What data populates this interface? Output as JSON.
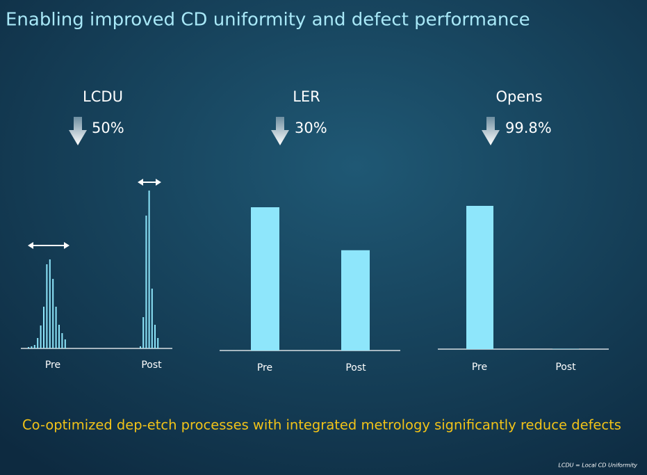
{
  "slide": {
    "title": "Enabling improved CD uniformity and defect performance",
    "caption": "Co-optimized dep-etch processes with integrated metrology significantly reduce defects",
    "footnote": "LCDU = Local CD Uniformity"
  },
  "chart_data": [
    {
      "type": "histogram",
      "title": "LCDU",
      "annotation": "50%",
      "categories": [
        "Pre",
        "Post"
      ],
      "values": [
        [
          2,
          3,
          5,
          15,
          33,
          60,
          121,
          128,
          100,
          60,
          34,
          22,
          13
        ],
        [
          3,
          45,
          191,
          227,
          86,
          34,
          15
        ]
      ],
      "color": "#8ee6fb",
      "ylim": [
        0,
        230
      ]
    },
    {
      "type": "bar",
      "title": "LER",
      "annotation": "30%",
      "categories": [
        "Pre",
        "Post"
      ],
      "values": [
        100,
        70
      ],
      "color": "#8ee6fb",
      "ylim": [
        0,
        100
      ]
    },
    {
      "type": "bar",
      "title": "Opens",
      "annotation": "99.8%",
      "categories": [
        "Pre",
        "Post"
      ],
      "values": [
        100,
        0.2
      ],
      "color": "#8ee6fb",
      "ylim": [
        0,
        100
      ]
    }
  ]
}
